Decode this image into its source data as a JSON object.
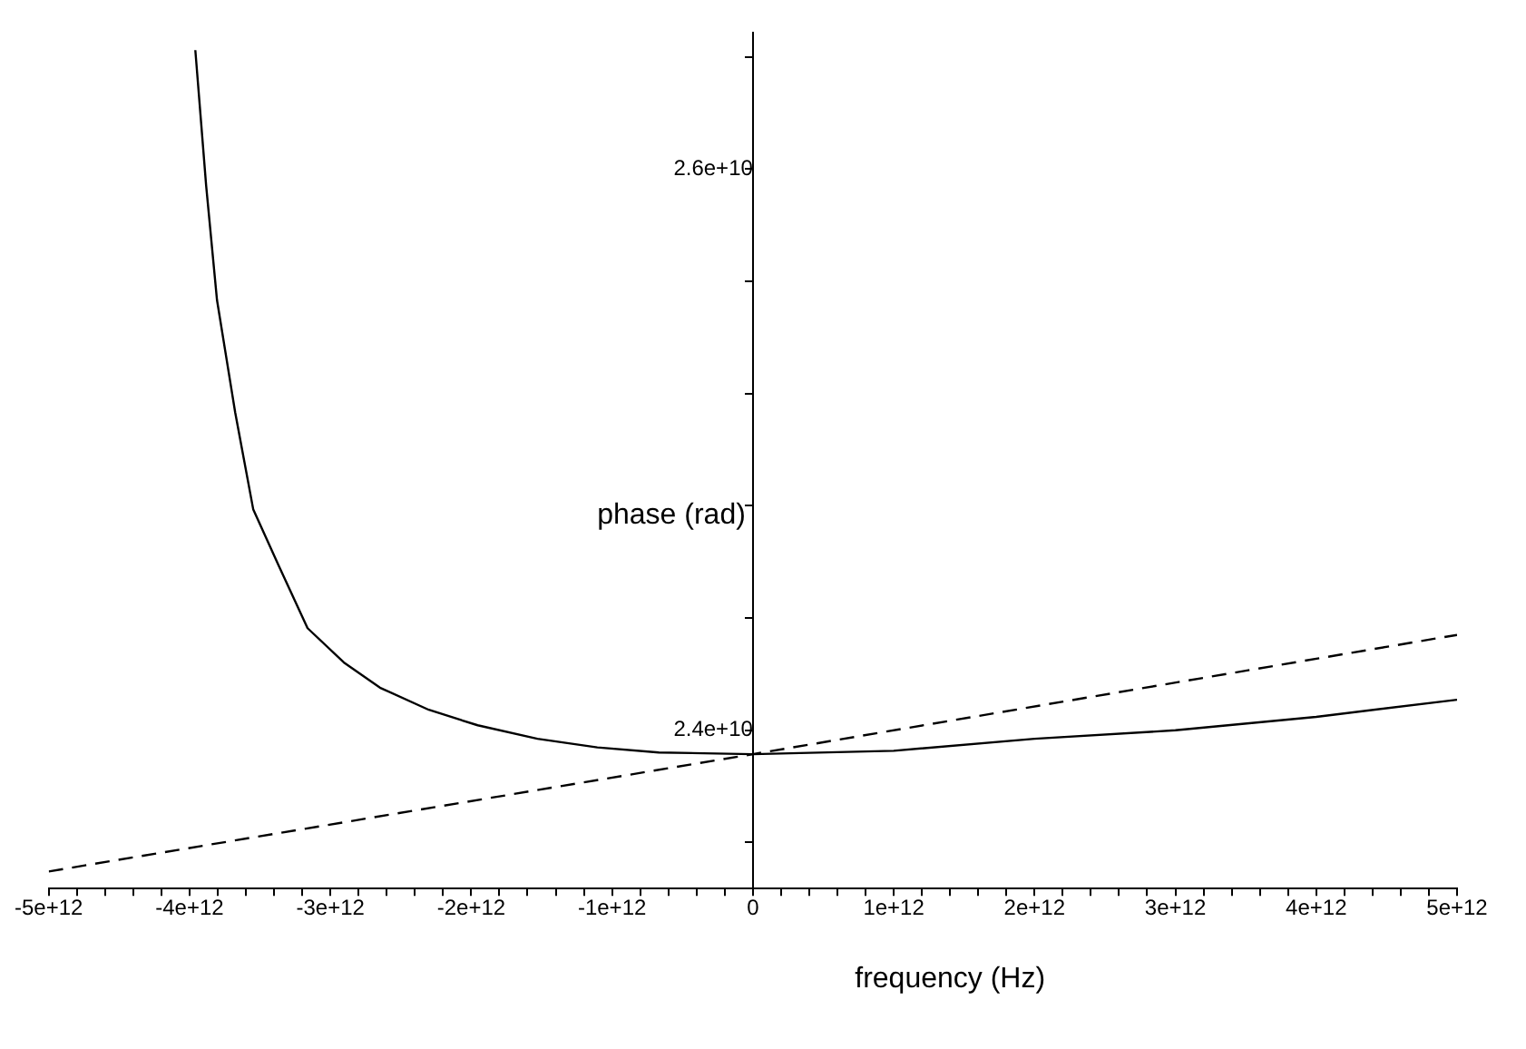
{
  "chart_data": {
    "type": "line",
    "xlabel": "frequency (Hz)",
    "ylabel": "phase (rad)",
    "xlim": [
      -5000000000000,
      5000000000000
    ],
    "ylim": [
      23436000000,
      26485000000
    ],
    "xticks": [
      {
        "value": -5000000000000,
        "label": "-5e+12"
      },
      {
        "value": -4800000000000,
        "label": null
      },
      {
        "value": -4600000000000,
        "label": null
      },
      {
        "value": -4400000000000,
        "label": null
      },
      {
        "value": -4200000000000,
        "label": null
      },
      {
        "value": -4000000000000,
        "label": "-4e+12"
      },
      {
        "value": -3800000000000,
        "label": null
      },
      {
        "value": -3600000000000,
        "label": null
      },
      {
        "value": -3400000000000,
        "label": null
      },
      {
        "value": -3200000000000,
        "label": null
      },
      {
        "value": -3000000000000,
        "label": "-3e+12"
      },
      {
        "value": -2800000000000,
        "label": null
      },
      {
        "value": -2600000000000,
        "label": null
      },
      {
        "value": -2400000000000,
        "label": null
      },
      {
        "value": -2200000000000,
        "label": null
      },
      {
        "value": -2000000000000,
        "label": "-2e+12"
      },
      {
        "value": -1800000000000,
        "label": null
      },
      {
        "value": -1600000000000,
        "label": null
      },
      {
        "value": -1400000000000,
        "label": null
      },
      {
        "value": -1200000000000,
        "label": null
      },
      {
        "value": -1000000000000,
        "label": "-1e+12"
      },
      {
        "value": -800000000000,
        "label": null
      },
      {
        "value": -600000000000,
        "label": null
      },
      {
        "value": -400000000000,
        "label": null
      },
      {
        "value": -200000000000,
        "label": null
      },
      0,
      {
        "value": 200000000000,
        "label": null
      },
      {
        "value": 400000000000,
        "label": null
      },
      {
        "value": 600000000000,
        "label": null
      },
      {
        "value": 800000000000,
        "label": null
      },
      {
        "value": 1000000000000,
        "label": "1e+12"
      },
      {
        "value": 1200000000000,
        "label": null
      },
      {
        "value": 1400000000000,
        "label": null
      },
      {
        "value": 1600000000000,
        "label": null
      },
      {
        "value": 1800000000000,
        "label": null
      },
      {
        "value": 2000000000000,
        "label": "2e+12"
      },
      {
        "value": 2200000000000,
        "label": null
      },
      {
        "value": 2400000000000,
        "label": null
      },
      {
        "value": 2600000000000,
        "label": null
      },
      {
        "value": 2800000000000,
        "label": null
      },
      {
        "value": 3000000000000,
        "label": "3e+12"
      },
      {
        "value": 3200000000000,
        "label": null
      },
      {
        "value": 3400000000000,
        "label": null
      },
      {
        "value": 3600000000000,
        "label": null
      },
      {
        "value": 3800000000000,
        "label": null
      },
      {
        "value": 4000000000000,
        "label": "4e+12"
      },
      {
        "value": 4200000000000,
        "label": null
      },
      {
        "value": 4400000000000,
        "label": null
      },
      {
        "value": 4600000000000,
        "label": null
      },
      {
        "value": 4800000000000,
        "label": null
      },
      {
        "value": 5000000000000,
        "label": "5e+12"
      }
    ],
    "yticks": [
      {
        "value": 23600000000,
        "label": null
      },
      {
        "value": 24000000000,
        "label": "2.4e+10"
      },
      {
        "value": 24400000000,
        "label": null
      },
      {
        "value": 24800000000,
        "label": null
      },
      {
        "value": 25200000000,
        "label": null
      },
      {
        "value": 25600000000,
        "label": null
      },
      {
        "value": 26000000000,
        "label": "2.6e+10"
      },
      {
        "value": 26400000000,
        "label": null
      }
    ],
    "grid": false,
    "legend": false,
    "marker": "none",
    "series": [
      {
        "color": "#000000",
        "line_style": "solid",
        "x": [
          -3959000000000,
          -3882000000000,
          -3805000000000,
          -3676000000000,
          -3548000000000,
          -3368000000000,
          -3162000000000,
          -2905000000000,
          -2648000000000,
          -2301000000000,
          -1954000000000,
          -1530000000000,
          -1105000000000,
          -668000000000,
          0,
          1000000000000,
          2000000000000,
          3000000000000,
          4000000000000,
          5000000000000
        ],
        "values": [
          26424000000,
          25940000000,
          25533000000,
          25133000000,
          24788000000,
          24588000000,
          24364000000,
          24242000000,
          24152000000,
          24073000000,
          24018000000,
          23970000000,
          23939000000,
          23921000000,
          23915000000,
          23927000000,
          23970000000,
          24000000000,
          24048000000,
          24109000000
        ]
      },
      {
        "color": "#000000",
        "line_style": "dashed",
        "x": [
          -5000000000000,
          0,
          5000000000000
        ],
        "values": [
          23497000000,
          23915000000,
          24340000000
        ]
      }
    ]
  }
}
